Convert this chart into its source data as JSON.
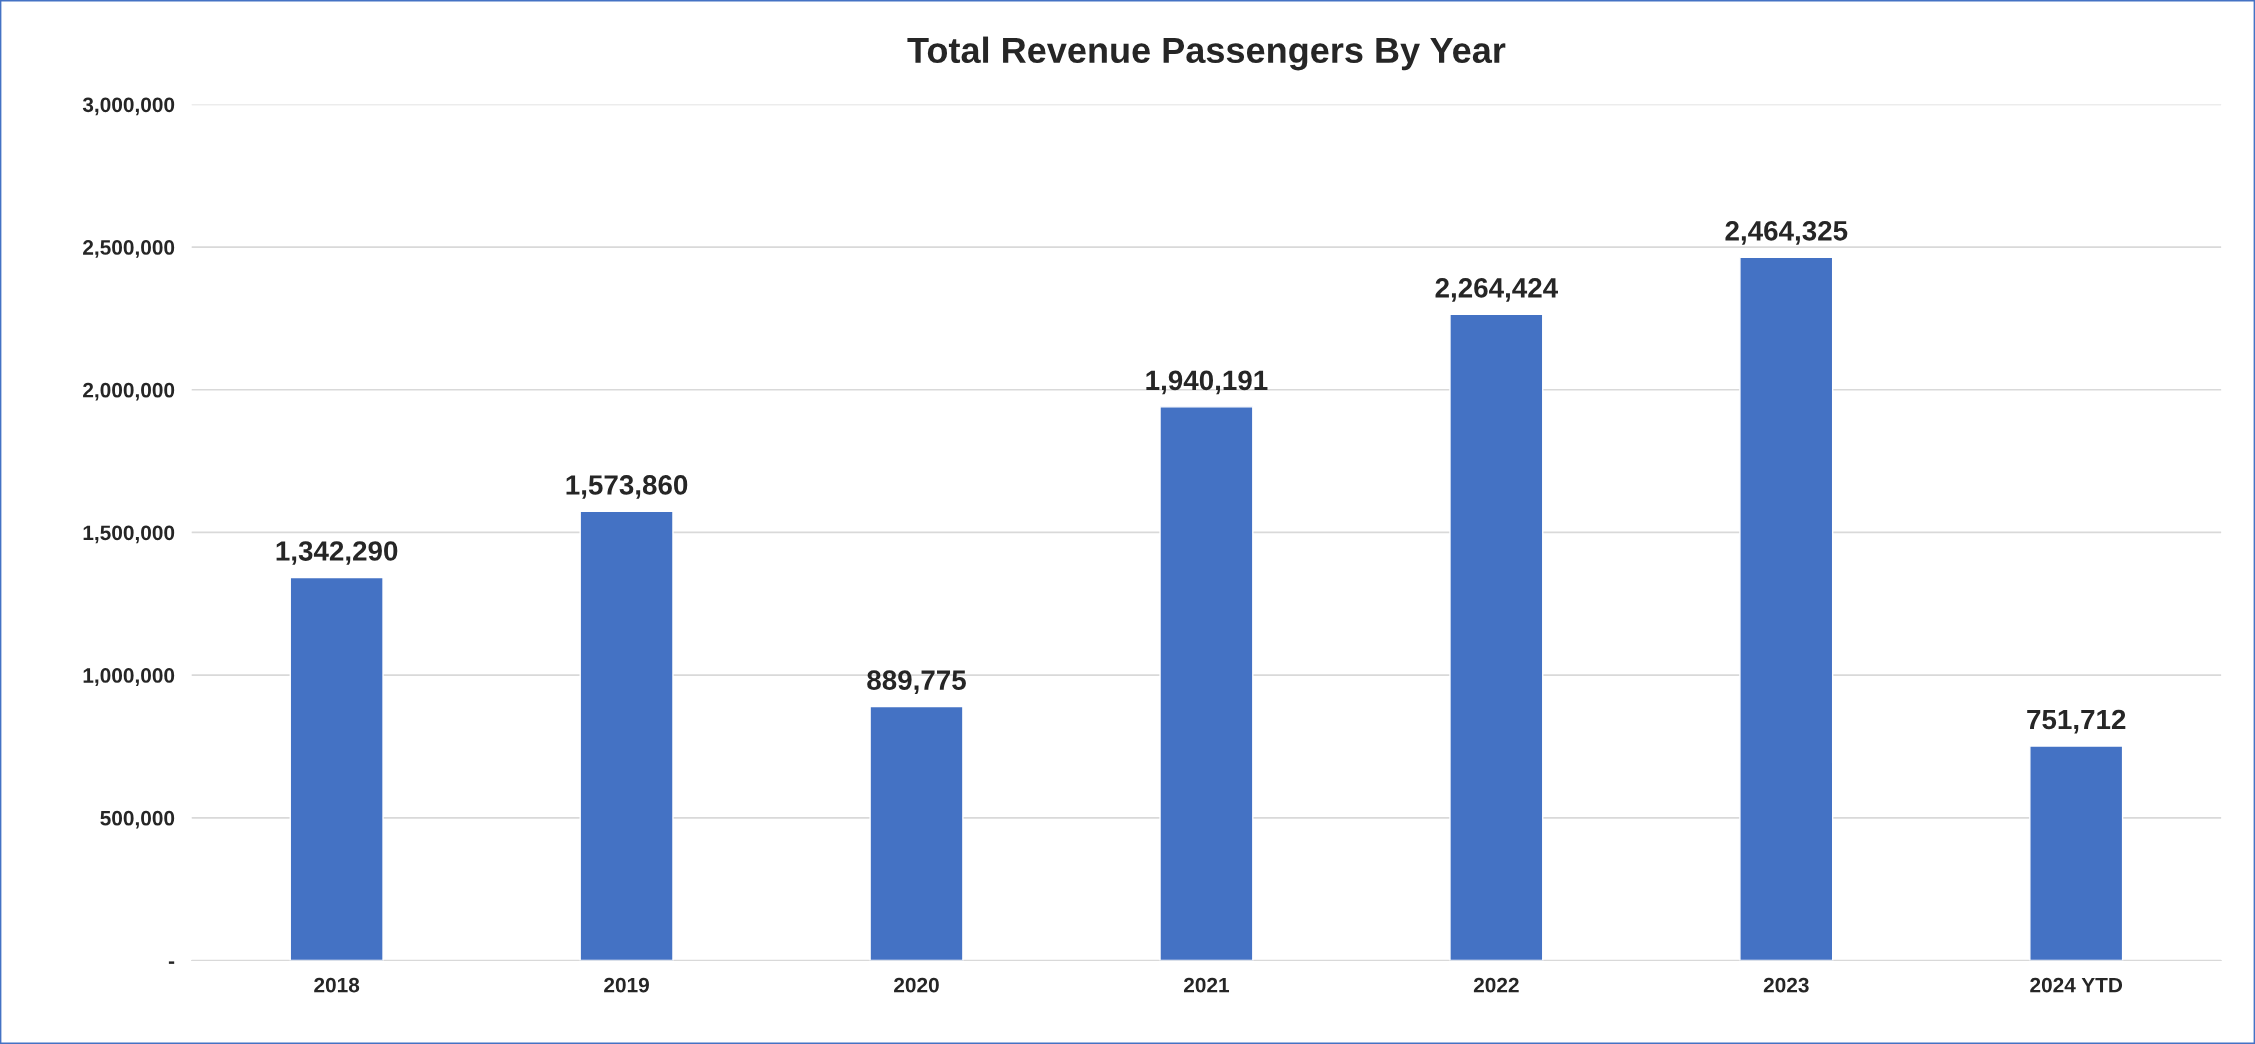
{
  "chart_data": {
    "type": "bar",
    "title": "Total Revenue Passengers By Year",
    "categories": [
      "2018",
      "2019",
      "2020",
      "2021",
      "2022",
      "2023",
      "2024 YTD"
    ],
    "values": [
      1342290,
      1573860,
      889775,
      1940191,
      2264424,
      2464325,
      751712
    ],
    "value_labels": [
      "1,342,290",
      "1,573,860",
      "889,775",
      "1,940,191",
      "2,264,424",
      "2,464,325",
      "751,712"
    ],
    "color": "#4472c4",
    "ylim": [
      0,
      3000000
    ],
    "yticks": [
      {
        "value": 0,
        "label": "-"
      },
      {
        "value": 500000,
        "label": "500,000"
      },
      {
        "value": 1000000,
        "label": "1,000,000"
      },
      {
        "value": 1500000,
        "label": "1,500,000"
      },
      {
        "value": 2000000,
        "label": "2,000,000"
      },
      {
        "value": 2500000,
        "label": "2,500,000"
      },
      {
        "value": 3000000,
        "label": "3,000,000"
      }
    ],
    "grid": "y"
  }
}
